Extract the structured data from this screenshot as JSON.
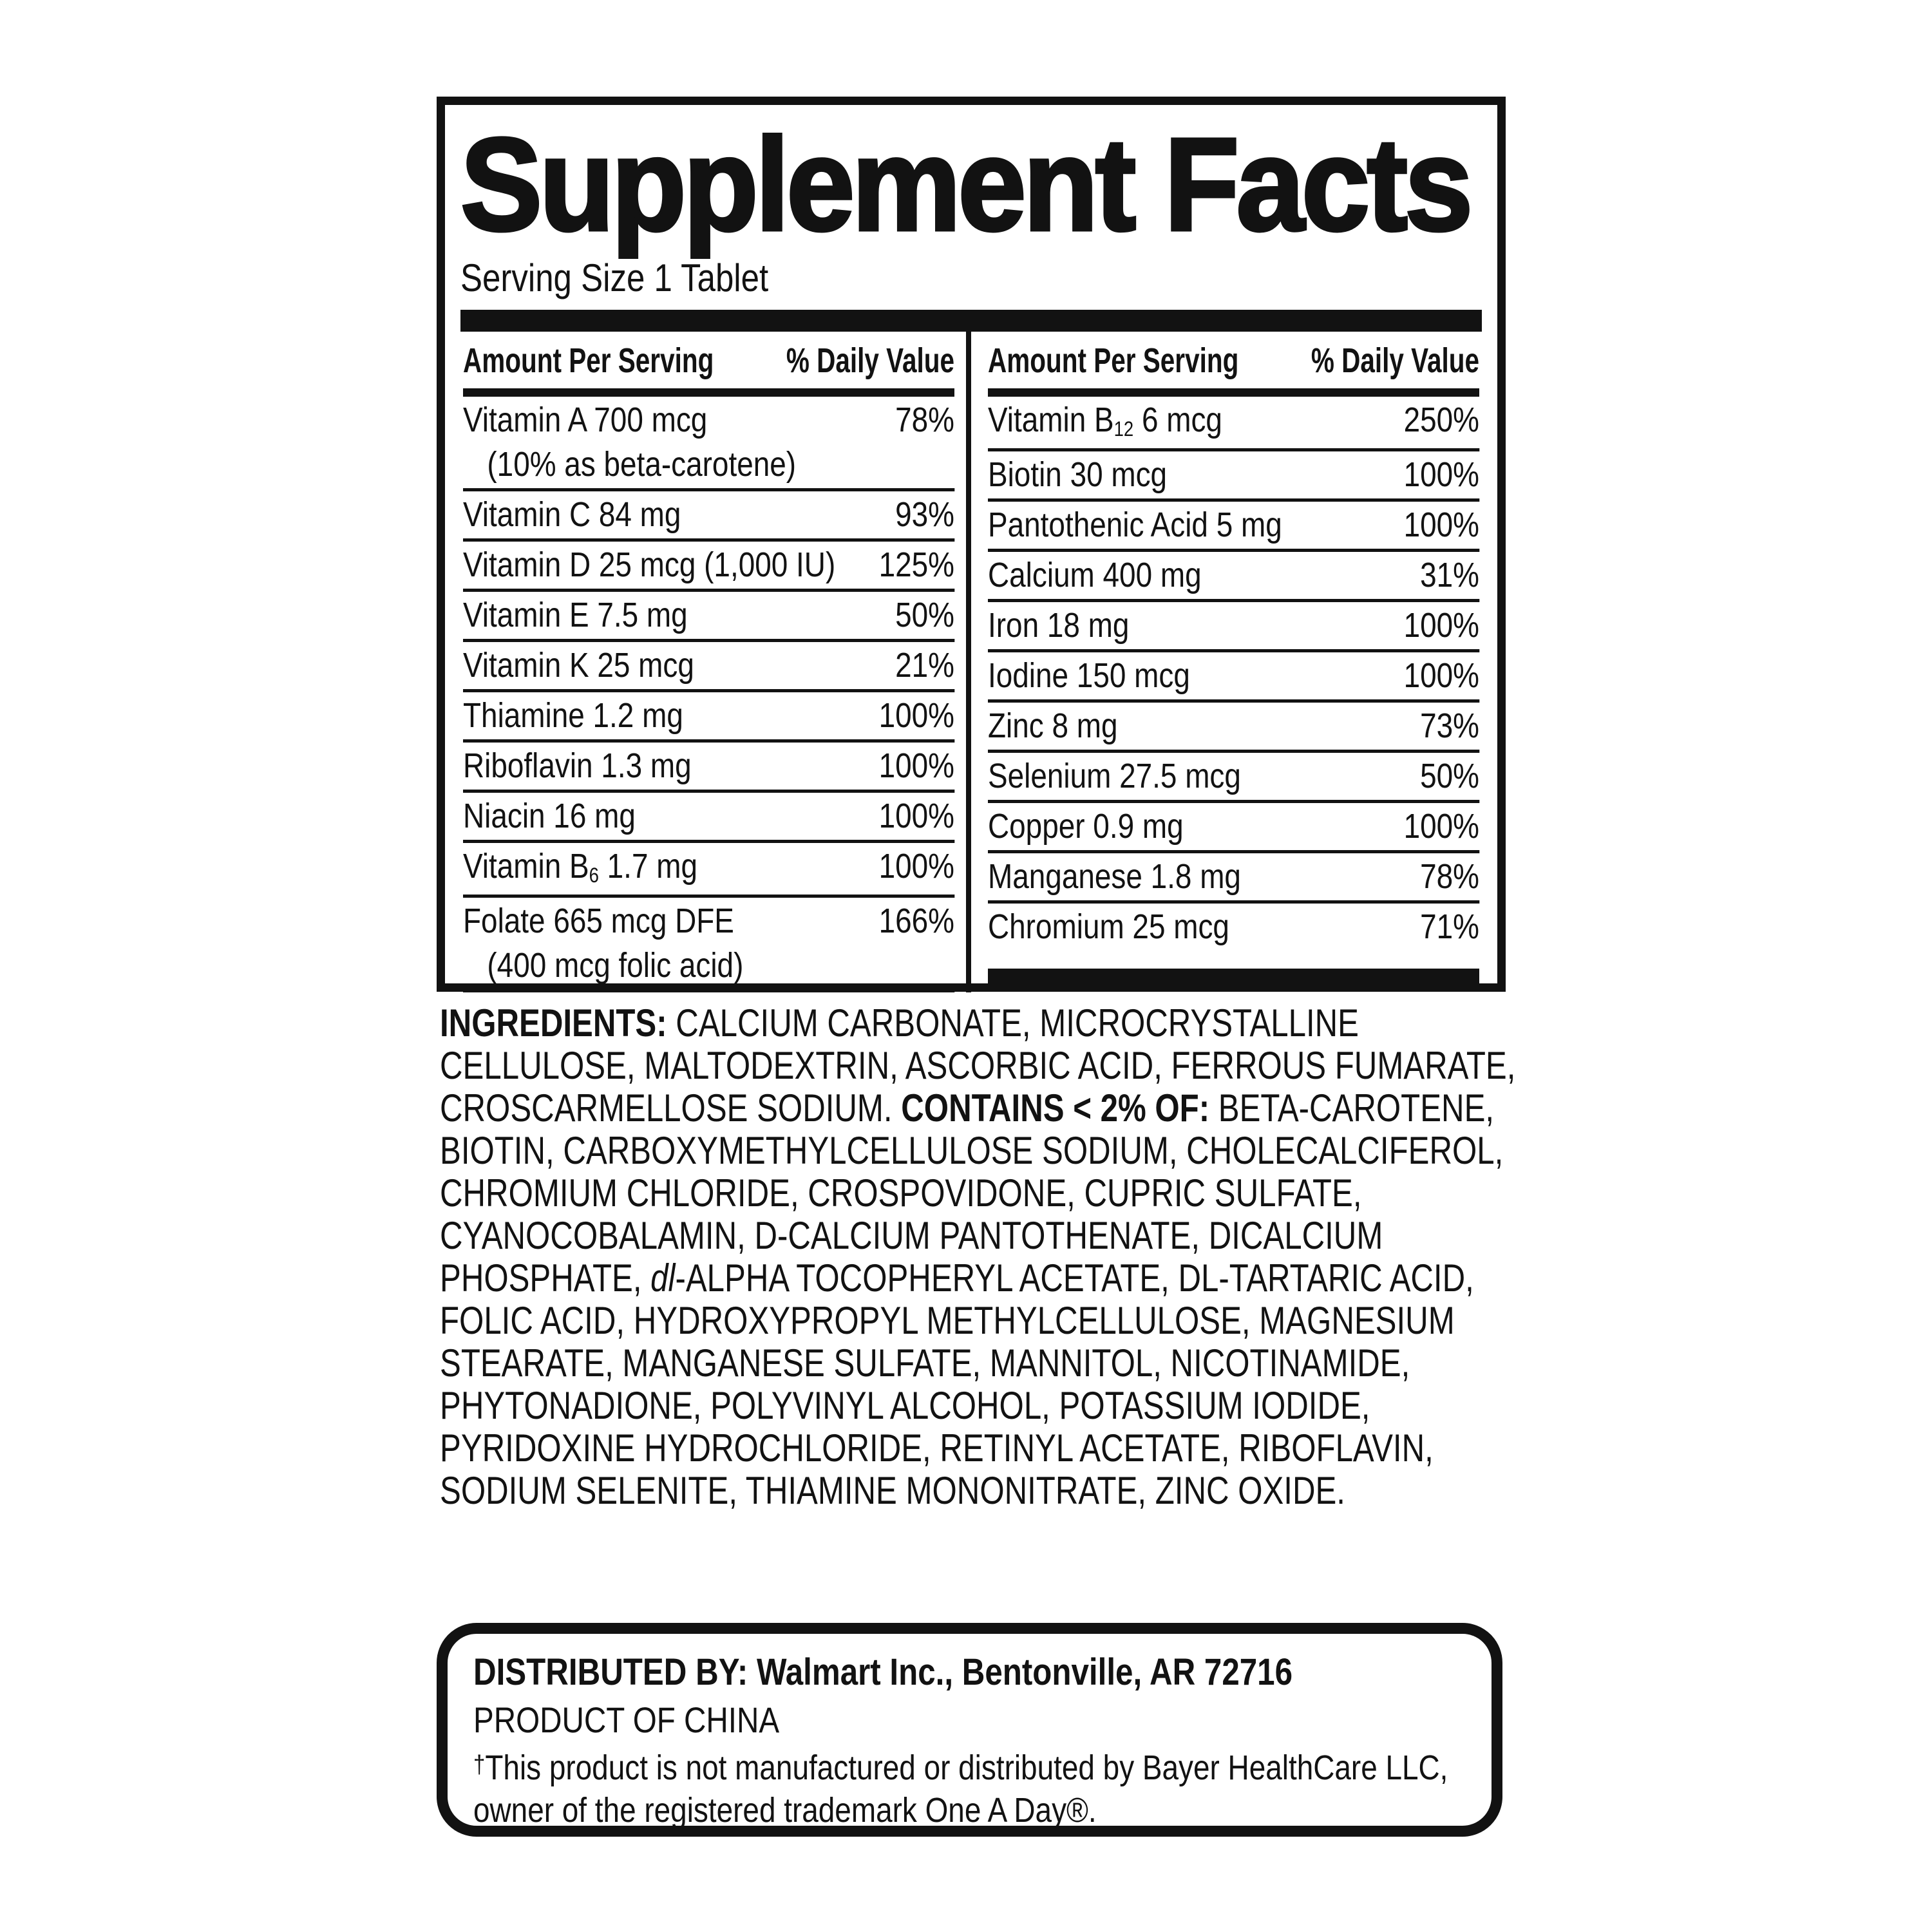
{
  "page": {
    "background": "#ffffff",
    "ink": "#121212"
  },
  "panel": {
    "title": "Supplement Facts",
    "serving_size": "Serving Size 1 Tablet",
    "header": {
      "amount": "Amount Per Serving",
      "dv": "% Daily Value"
    },
    "columns": [
      {
        "rows": [
          {
            "name": [
              {
                "t": "Vitamin A 700 mcg"
              }
            ],
            "note": "(10% as beta-carotene)",
            "dv": "78%"
          },
          {
            "name": [
              {
                "t": "Vitamin C 84 mg"
              }
            ],
            "dv": "93%"
          },
          {
            "name": [
              {
                "t": "Vitamin D 25 mcg (1,000 IU)"
              }
            ],
            "dv": "125%"
          },
          {
            "name": [
              {
                "t": "Vitamin E 7.5 mg"
              }
            ],
            "dv": "50%"
          },
          {
            "name": [
              {
                "t": "Vitamin K 25 mcg"
              }
            ],
            "dv": "21%"
          },
          {
            "name": [
              {
                "t": "Thiamine 1.2 mg"
              }
            ],
            "dv": "100%"
          },
          {
            "name": [
              {
                "t": "Riboflavin 1.3 mg"
              }
            ],
            "dv": "100%"
          },
          {
            "name": [
              {
                "t": "Niacin 16 mg"
              }
            ],
            "dv": "100%"
          },
          {
            "name": [
              {
                "t": "Vitamin B"
              },
              {
                "t": "6",
                "sub": true
              },
              {
                "t": " 1.7 mg"
              }
            ],
            "dv": "100%"
          },
          {
            "name": [
              {
                "t": "Folate 665 mcg DFE"
              }
            ],
            "note": "(400 mcg folic acid)",
            "dv": "166%"
          }
        ]
      },
      {
        "rows": [
          {
            "name": [
              {
                "t": "Vitamin B"
              },
              {
                "t": "12",
                "sub": true
              },
              {
                "t": " 6 mcg"
              }
            ],
            "dv": "250%"
          },
          {
            "name": [
              {
                "t": "Biotin 30 mcg"
              }
            ],
            "dv": "100%"
          },
          {
            "name": [
              {
                "t": "Pantothenic Acid 5 mg"
              }
            ],
            "dv": "100%"
          },
          {
            "name": [
              {
                "t": "Calcium 400 mg"
              }
            ],
            "dv": "31%"
          },
          {
            "name": [
              {
                "t": "Iron 18 mg"
              }
            ],
            "dv": "100%"
          },
          {
            "name": [
              {
                "t": "Iodine 150 mcg"
              }
            ],
            "dv": "100%"
          },
          {
            "name": [
              {
                "t": "Zinc 8 mg"
              }
            ],
            "dv": "73%"
          },
          {
            "name": [
              {
                "t": "Selenium 27.5 mcg"
              }
            ],
            "dv": "50%"
          },
          {
            "name": [
              {
                "t": "Copper 0.9 mg"
              }
            ],
            "dv": "100%"
          },
          {
            "name": [
              {
                "t": "Manganese 1.8 mg"
              }
            ],
            "dv": "78%"
          },
          {
            "name": [
              {
                "t": "Chromium 25 mcg"
              }
            ],
            "dv": "71%"
          }
        ]
      }
    ]
  },
  "ingredients": {
    "segments": [
      {
        "t": "INGREDIENTS: ",
        "style": "bold"
      },
      {
        "t": "CALCIUM CARBONATE, MICROCRYSTALLINE CELLULOSE, MALTODEXTRIN, ASCORBIC ACID, FERROUS FUMARATE, CROSCARMELLOSE SODIUM. ",
        "style": "normal"
      },
      {
        "t": "CONTAINS < 2% OF: ",
        "style": "bold"
      },
      {
        "t": "BETA-CAROTENE, BIOTIN, CARBOXYMETHYLCELLULOSE SODIUM, CHOLECALCIFEROL, CHROMIUM CHLORIDE, CROSPOVIDONE, CUPRIC SULFATE, CYANOCOBALAMIN, D-CALCIUM PANTOTHENATE, DICALCIUM PHOSPHATE, ",
        "style": "normal"
      },
      {
        "t": "dl",
        "style": "italic"
      },
      {
        "t": "-ALPHA TOCOPHERYL ACETATE, DL-TARTARIC ACID, FOLIC ACID, HYDROXYPROPYL METHYLCELLULOSE, MAGNESIUM STEARATE, MANGANESE SULFATE, MANNITOL, NICOTINAMIDE, PHYTONADIONE, POLYVINYL ALCOHOL, POTASSIUM IODIDE, PYRIDOXINE HYDROCHLORIDE, RETINYL ACETATE, RIBOFLAVIN, SODIUM SELENITE, THIAMINE MONONITRATE, ZINC OXIDE.",
        "style": "normal"
      }
    ]
  },
  "distribution": {
    "line1": "DISTRIBUTED BY: Walmart Inc., Bentonville, AR 72716",
    "line2": "PRODUCT OF CHINA",
    "disclaimer": [
      {
        "t": "†",
        "sup": true
      },
      {
        "t": "This product is not manufactured or distributed by Bayer HealthCare LLC, owner of the registered trademark One A Day®."
      }
    ]
  }
}
